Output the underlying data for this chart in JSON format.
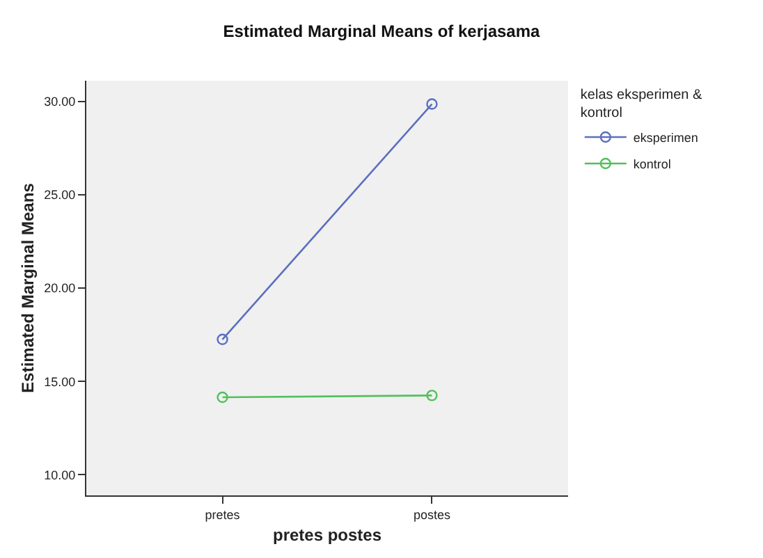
{
  "chart_data": {
    "type": "line",
    "title": "Estimated Marginal Means of kerjasama",
    "xlabel": "pretes postes",
    "ylabel": "Estimated Marginal Means",
    "legend_title": "kelas eksperimen & kontrol",
    "categories": [
      "pretes",
      "postes"
    ],
    "series": [
      {
        "name": "eksperimen",
        "color": "#5b6fc0",
        "values": [
          17.25,
          29.85
        ]
      },
      {
        "name": "kontrol",
        "color": "#52c05c",
        "values": [
          14.15,
          14.25
        ]
      }
    ],
    "ylim": [
      8.9,
      31.1
    ],
    "yticks": [
      {
        "value": 10,
        "label": "10.00"
      },
      {
        "value": 15,
        "label": "15.00"
      },
      {
        "value": 20,
        "label": "20.00"
      },
      {
        "value": 25,
        "label": "25.00"
      },
      {
        "value": 30,
        "label": "30.00"
      }
    ],
    "grid": false,
    "legend": "right",
    "marker": "circle",
    "line_style": "solid"
  }
}
